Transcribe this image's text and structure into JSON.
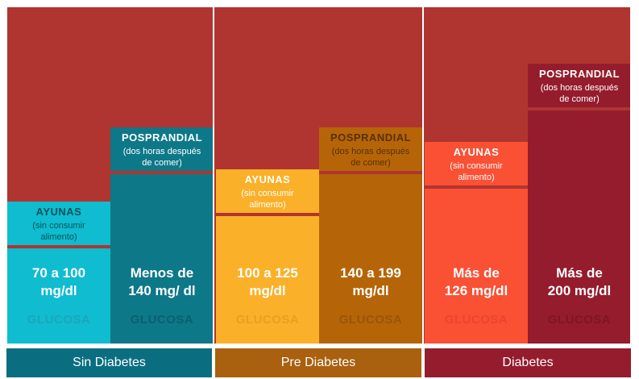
{
  "colors": {
    "background": "#b03530",
    "border": "#ffffff",
    "groups": [
      "#0b6e80",
      "#a9600f",
      "#941c2d"
    ],
    "footer_text": [
      "#ffffff",
      "#ffffff",
      "#ffffff"
    ],
    "bars": [
      {
        "fill": "#0fbcd0",
        "head_text": "#06535c",
        "glucosa_text": "#1aa7b9"
      },
      {
        "fill": "#0d7888",
        "head_text": "#ffffff",
        "glucosa_text": "#0a6070"
      },
      {
        "fill": "#fab028",
        "head_text": "#ffffff",
        "glucosa_text": "#e8a020"
      },
      {
        "fill": "#b56508",
        "head_text": "#5b2f05",
        "glucosa_text": "#9a5508"
      },
      {
        "fill": "#fa5034",
        "head_text": "#ffffff",
        "glucosa_text": "#ea4530"
      },
      {
        "fill": "#941c2d",
        "head_text": "#ffffff",
        "glucosa_text": "#7e1525"
      }
    ]
  },
  "chart_data": {
    "type": "bar",
    "title": "",
    "xlabel": "",
    "ylabel": "",
    "groups": [
      "Sin Diabetes",
      "Pre Diabetes",
      "Diabetes"
    ],
    "categories": [
      "AYUNAS",
      "POSPRANDIAL",
      "AYUNAS",
      "POSPRANDIAL",
      "AYUNAS",
      "POSPRANDIAL"
    ],
    "series": [
      {
        "values": [
          70,
          140,
          100,
          140,
          126,
          200
        ],
        "labels": [
          "70 a 100 mg/dl",
          "Menos de 140 mg/ dl",
          "100 a 125 mg/dl",
          "140 a 199 mg/dl",
          "Más de 126 mg/dl",
          "Más de 200 mg/dl"
        ]
      }
    ],
    "bars": [
      {
        "group": 0,
        "head": "AYUNAS",
        "sub": [
          "(sin consumir",
          "alimento)"
        ],
        "value_lines": [
          "70 a 100",
          "mg/dl"
        ],
        "glucosa": "GLUCOSA"
      },
      {
        "group": 0,
        "head": "POSPRANDIAL",
        "sub": [
          "(dos horas después",
          "de comer)"
        ],
        "value_lines": [
          "Menos de",
          "140 mg/ dl"
        ],
        "glucosa": "GLUCOSA"
      },
      {
        "group": 1,
        "head": "AYUNAS",
        "sub": [
          "(sin consumir",
          "alimento)"
        ],
        "value_lines": [
          "100 a 125",
          "mg/dl"
        ],
        "glucosa": "GLUCOSA"
      },
      {
        "group": 1,
        "head": "POSPRANDIAL",
        "sub": [
          "(dos horas después",
          "de comer)"
        ],
        "value_lines": [
          "140 a 199",
          "mg/dl"
        ],
        "glucosa": "GLUCOSA"
      },
      {
        "group": 2,
        "head": "AYUNAS",
        "sub": [
          "(sin consumir",
          "alimento)"
        ],
        "value_lines": [
          "Más de",
          "126 mg/dl"
        ],
        "glucosa": "GLUCOSA"
      },
      {
        "group": 2,
        "head": "POSPRANDIAL",
        "sub": [
          "(dos horas después",
          "de comer)"
        ],
        "value_lines": [
          "Más de",
          "200 mg/dl"
        ],
        "glucosa": "GLUCOSA"
      }
    ]
  }
}
